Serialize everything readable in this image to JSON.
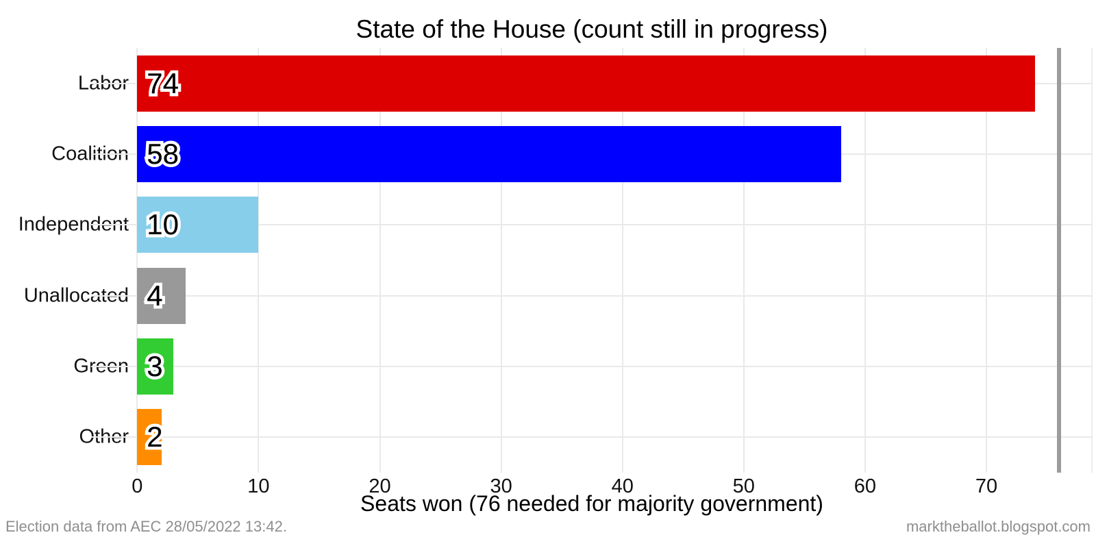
{
  "footer": {
    "left": "Election data from AEC 28/05/2022 13:42.",
    "right": "marktheballot.blogspot.com"
  },
  "chart_data": {
    "type": "bar",
    "orientation": "horizontal",
    "title": "State of the House (count still in progress)",
    "xlabel": "Seats won (76 needed for majority government)",
    "categories": [
      "Labor",
      "Coalition",
      "Independent",
      "Unallocated",
      "Green",
      "Other"
    ],
    "values": [
      74,
      58,
      10,
      4,
      3,
      2
    ],
    "bar_colors": [
      "#dd0000",
      "#0000ff",
      "#87ceeb",
      "#999999",
      "#32cd32",
      "#ff8c00"
    ],
    "xticks": [
      0,
      10,
      20,
      30,
      40,
      50,
      60,
      70
    ],
    "x_range": [
      -3.8,
      78.75
    ],
    "reference_line": {
      "value": 76,
      "meaning": "seats needed for majority",
      "color": "#9b9b9b"
    },
    "grid": "major",
    "gridline_color": "#e9e9e9",
    "value_label_style": "black text with white halo, inside left end of bar"
  }
}
